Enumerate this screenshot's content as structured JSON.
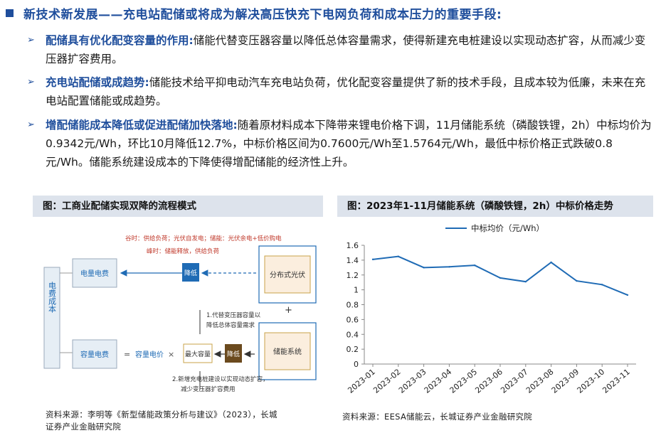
{
  "title": "新技术新发展——充电站配储或将成为解决高压快充下电网负荷和成本压力的重要手段:",
  "bullets": [
    {
      "head": "配储具有优化配变容量的作用:",
      "text": "储能代替变压器容量以降低总体容量需求，使得新建充电桩建设以实现动态扩容，从而减少变压器扩容费用。"
    },
    {
      "head": "充电站配储或成趋势:",
      "text": "储能技术给平抑电动汽车充电站负荷，优化配变容量提供了新的技术手段，且成本较为低廉，未来在充电站配置储能或成趋势。"
    },
    {
      "head": "增配储能成本降低或促进配储加快落地:",
      "text": "随着原材料成本下降带来锂电价格下调，11月储能系统（磷酸铁锂，2h）中标均价为0.9342元/Wh，环比10月降低12.7%，中标价格区间为0.7600元/Wh至1.5764元/Wh，最低中标价格正式跌破0.8元/Wh。储能系统建设成本的下降使得增配储能的经济性上升。"
    }
  ],
  "left_panel": {
    "header": "图：工商业配储实现双降的流程模式",
    "source_line1": "资料来源：李明等《新型储能政策分析与建议》（2023），长城",
    "source_line2": "证券产业金融研究院",
    "diagram": {
      "cost_box": "电费成本",
      "energy_fee": "电量电费",
      "capacity_fee": "容量电费",
      "eq": "=",
      "capacity_price": "容量电价",
      "times": "×",
      "max_capacity": "最大容量",
      "reduce1": "降低",
      "reduce2": "降低",
      "pv": "分布式光伏",
      "plus": "+",
      "storage": "储能系统",
      "peak_line": "谷时：供给负荷；光伏自发电；储能：光伏余电+低价购电",
      "valley_line": "峰时：储能释放，供给负荷",
      "note1_a": "1.代替变压器容量以",
      "note1_b": "降低总体容量需求",
      "note2_a": "2.新增充电桩建设以实现动态扩容，",
      "note2_b": "减少变压器扩容费用"
    }
  },
  "right_panel": {
    "header": "图：2023年1-11月储能系统（磷酸铁锂，2h）中标价格走势",
    "source": "资料来源：EESA储能云，长城证券产业金融研究院"
  },
  "chart_data": {
    "type": "line",
    "title": "",
    "xlabel": "",
    "ylabel": "",
    "categories": [
      "2023-01",
      "2023-02",
      "2023-03",
      "2023-04",
      "2023-05",
      "2023-06",
      "2023-07",
      "2023-08",
      "2023-09",
      "2023-10",
      "2023-11"
    ],
    "series": [
      {
        "name": "中标均价（元/Wh）",
        "values": [
          1.41,
          1.45,
          1.3,
          1.31,
          1.33,
          1.16,
          1.11,
          1.37,
          1.12,
          1.07,
          0.93
        ]
      }
    ],
    "ylim": [
      0,
      1.6
    ],
    "yticks": [
      "0",
      "0.2",
      "0.4",
      "0.6",
      "0.8",
      "1",
      "1.2",
      "1.4",
      "1.6"
    ],
    "grid": false,
    "legend": "top-center",
    "line_color": "#1f6bb5"
  }
}
